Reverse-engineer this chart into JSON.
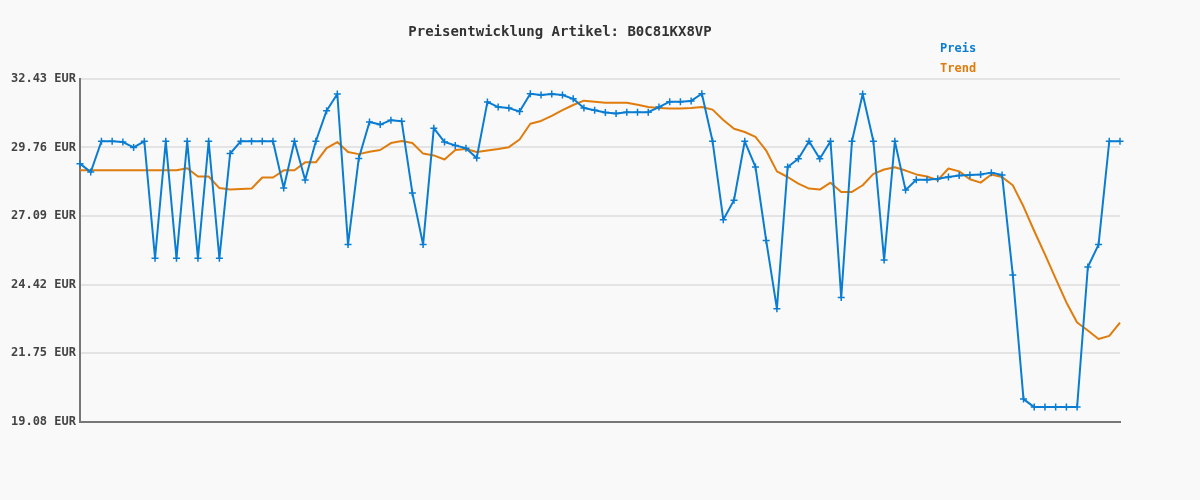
{
  "chart_data": {
    "type": "line",
    "title": "Preisentwicklung Artikel: B0C81KX8VP",
    "categories": [
      null,
      null,
      null,
      null,
      null,
      null,
      null,
      null,
      null,
      null,
      null,
      null,
      null,
      null,
      null,
      null,
      null,
      null,
      null,
      null,
      null,
      null,
      null,
      null,
      null,
      null,
      null,
      null,
      null,
      null,
      null,
      null,
      null,
      null,
      null,
      null,
      null,
      null,
      null,
      null,
      null,
      null,
      null,
      null,
      null,
      null,
      null,
      null,
      null,
      null,
      null,
      null,
      null,
      null,
      null,
      null,
      null,
      null,
      null,
      null,
      null,
      null,
      null,
      null,
      null,
      null,
      null,
      null,
      null,
      null,
      null,
      null,
      null,
      null,
      null,
      null,
      null,
      null,
      null,
      null,
      null,
      null,
      null,
      null,
      null,
      null,
      null,
      null,
      null,
      null,
      null,
      null,
      null,
      null,
      null,
      null,
      null,
      null
    ],
    "series": [
      {
        "name": "Preis",
        "color": "#0a7dd2",
        "marker": "cross",
        "values": [
          29.13,
          28.8,
          30.0,
          30.0,
          29.97,
          29.76,
          30.0,
          25.45,
          30.0,
          25.45,
          30.0,
          25.45,
          30.0,
          25.45,
          29.52,
          30.0,
          30.0,
          30.0,
          30.0,
          28.18,
          30.0,
          28.49,
          30.0,
          31.19,
          31.84,
          25.98,
          29.33,
          30.75,
          30.65,
          30.82,
          30.78,
          27.99,
          25.98,
          30.51,
          29.97,
          29.84,
          29.73,
          29.35,
          31.53,
          31.33,
          31.29,
          31.16,
          31.85,
          31.8,
          31.84,
          31.8,
          31.65,
          31.29,
          31.21,
          31.12,
          31.08,
          31.13,
          31.13,
          31.13,
          31.33,
          31.54,
          31.54,
          31.57,
          31.85,
          30.0,
          26.95,
          27.71,
          30.0,
          29.0,
          26.14,
          23.49,
          29.0,
          29.32,
          30.0,
          29.32,
          30.0,
          23.92,
          30.0,
          31.84,
          30.0,
          25.38,
          30.0,
          28.1,
          28.5,
          28.5,
          28.54,
          28.61,
          28.67,
          28.69,
          28.71,
          28.78,
          28.69,
          24.8,
          19.97,
          19.66,
          19.66,
          19.66,
          19.66,
          19.66,
          25.11,
          25.98,
          30.0,
          30.0
        ]
      },
      {
        "name": "Trend",
        "color": "#e07c0c",
        "marker": "none",
        "values": [
          28.87,
          28.87,
          28.87,
          28.87,
          28.87,
          28.87,
          28.87,
          28.87,
          28.87,
          28.87,
          28.95,
          28.63,
          28.63,
          28.18,
          28.12,
          28.14,
          28.16,
          28.59,
          28.59,
          28.87,
          28.87,
          29.18,
          29.18,
          29.73,
          29.97,
          29.58,
          29.5,
          29.59,
          29.66,
          29.93,
          30.01,
          29.93,
          29.52,
          29.45,
          29.29,
          29.66,
          29.7,
          29.58,
          29.64,
          29.7,
          29.77,
          30.07,
          30.68,
          30.79,
          30.99,
          31.21,
          31.41,
          31.58,
          31.54,
          31.5,
          31.5,
          31.5,
          31.42,
          31.33,
          31.29,
          31.27,
          31.27,
          31.29,
          31.33,
          31.23,
          30.83,
          30.49,
          30.36,
          30.17,
          29.64,
          28.83,
          28.61,
          28.35,
          28.16,
          28.12,
          28.39,
          28.03,
          28.03,
          28.29,
          28.73,
          28.9,
          28.99,
          28.86,
          28.71,
          28.63,
          28.49,
          28.94,
          28.83,
          28.52,
          28.39,
          28.71,
          28.61,
          28.29,
          27.46,
          26.51,
          25.6,
          24.66,
          23.73,
          22.95,
          22.64,
          22.31,
          22.43,
          22.95
        ]
      }
    ],
    "ylim": [
      19.08,
      32.43
    ],
    "yticks": [
      {
        "value": 19.08,
        "label": "19.08 EUR"
      },
      {
        "value": 21.75,
        "label": "21.75 EUR"
      },
      {
        "value": 24.42,
        "label": "24.42 EUR"
      },
      {
        "value": 27.09,
        "label": "27.09 EUR"
      },
      {
        "value": 29.76,
        "label": "29.76 EUR"
      },
      {
        "value": 32.43,
        "label": "32.43 EUR"
      }
    ],
    "grid": "y",
    "legend": "top right",
    "line_style": "solid"
  }
}
